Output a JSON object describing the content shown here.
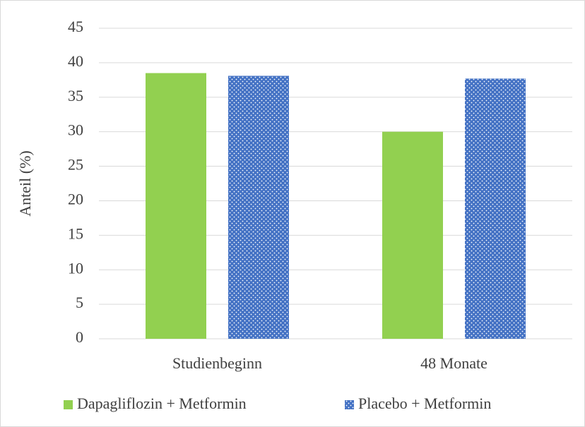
{
  "chart_data": {
    "type": "bar",
    "y_label": "Anteil (%)",
    "categories": [
      "Studienbeginn",
      "48 Monate"
    ],
    "series": [
      {
        "name": "Dapagliflozin + Metformin",
        "color": "#92d050",
        "values": [
          38.5,
          30
        ]
      },
      {
        "name": "Placebo + Metformin",
        "color": "#4472c4",
        "pattern": "dots",
        "values": [
          38.1,
          37.7
        ]
      }
    ],
    "ylim": [
      0,
      45
    ],
    "yticks": [
      0,
      5,
      10,
      15,
      20,
      25,
      30,
      35,
      40,
      45
    ],
    "grid": true,
    "legend": "bottom"
  }
}
